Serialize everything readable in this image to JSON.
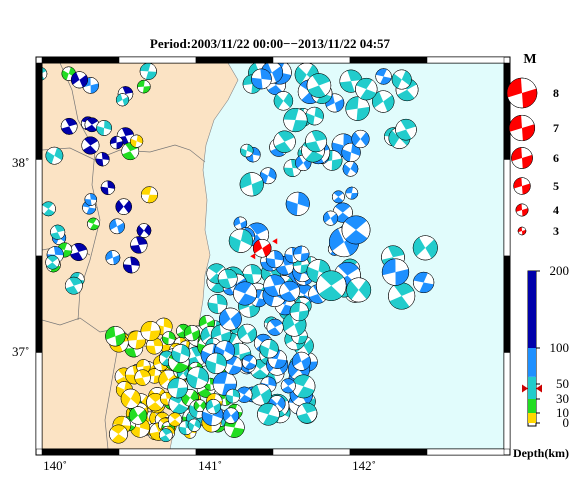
{
  "title": "Period:2003/11/22 00:00−−2013/11/22 04:57",
  "map": {
    "lon_range": [
      139.9,
      142.9
    ],
    "lat_range": [
      36.5,
      38.5
    ],
    "lon_ticks": [
      {
        "value": 140,
        "label": "140˚"
      },
      {
        "value": 141,
        "label": "141˚"
      },
      {
        "value": 142,
        "label": "142˚"
      }
    ],
    "lat_ticks": [
      {
        "value": 37,
        "label": "37˚"
      },
      {
        "value": 38,
        "label": "38˚"
      }
    ],
    "land_color": "#fbe3c4",
    "sea_color": "#e1fcfc",
    "highlight_event": {
      "lon": 141.33,
      "lat": 37.54,
      "magnitude": 5.5,
      "depth_km": 44,
      "color": "#ff0000"
    }
  },
  "magnitude_legend": {
    "title": "M",
    "items": [
      {
        "magnitude": 8,
        "label": "8"
      },
      {
        "magnitude": 7,
        "label": "7"
      },
      {
        "magnitude": 6,
        "label": "6"
      },
      {
        "magnitude": 5,
        "label": "5"
      },
      {
        "magnitude": 4,
        "label": "4"
      },
      {
        "magnitude": 3,
        "label": "3"
      }
    ]
  },
  "depth_scale": {
    "label": "Depth(km)",
    "max": 200,
    "ticks": [
      {
        "value": 200,
        "label": "200"
      },
      {
        "value": 100,
        "label": "100"
      },
      {
        "value": 50,
        "label": "50"
      },
      {
        "value": 30,
        "label": "30"
      },
      {
        "value": 10,
        "label": "10"
      },
      {
        "value": 0,
        "label": "0"
      }
    ],
    "bands": [
      {
        "from": 0,
        "to": 10,
        "color": "#ffd700"
      },
      {
        "from": 10,
        "to": 30,
        "color": "#22dd22"
      },
      {
        "from": 30,
        "to": 60,
        "color": "#22cccc"
      },
      {
        "from": 60,
        "to": 100,
        "color": "#1e90ff"
      },
      {
        "from": 100,
        "to": 200,
        "color": "#0000aa"
      }
    ],
    "marker_depth": 44
  }
}
